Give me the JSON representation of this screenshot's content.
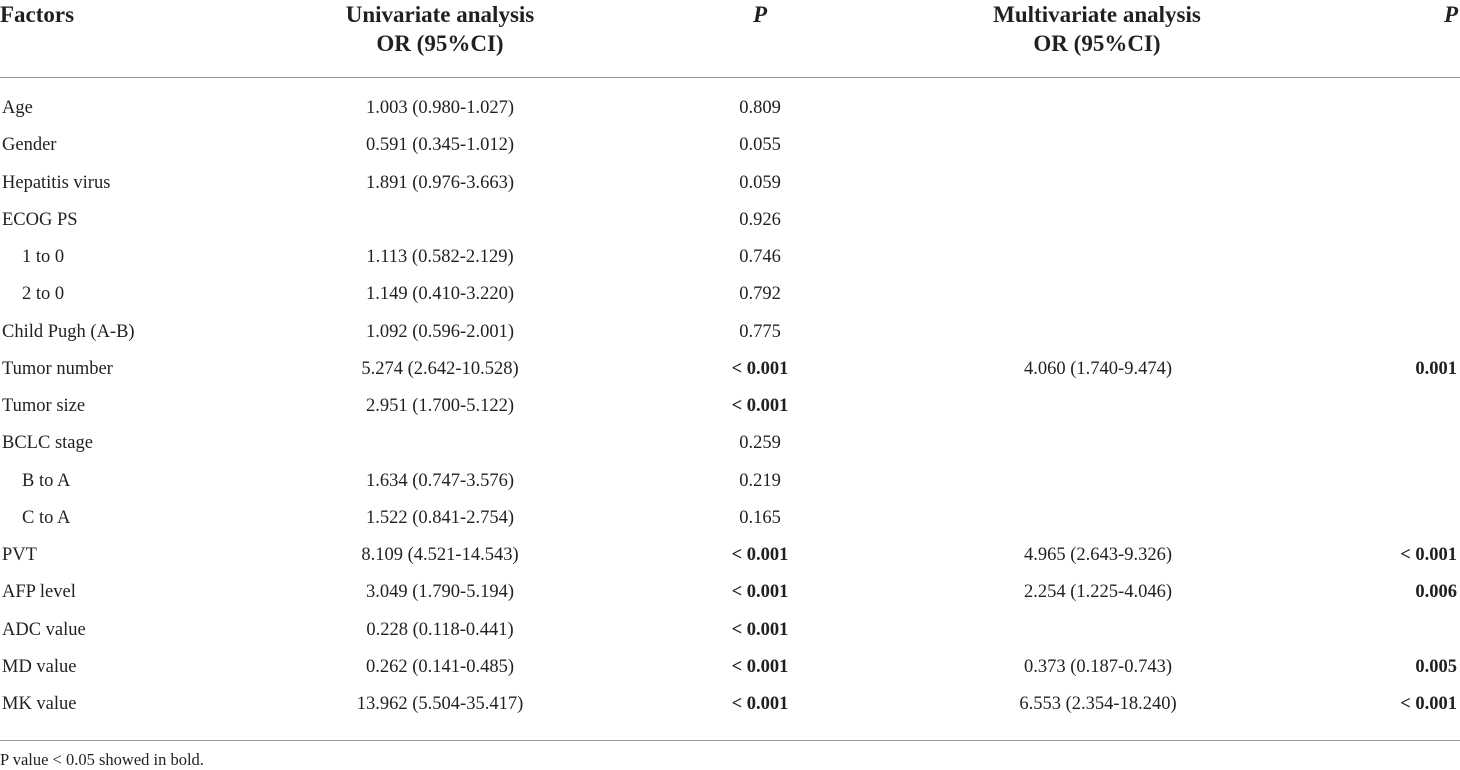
{
  "header": {
    "factors": "Factors",
    "univariate_line1": "Univariate analysis",
    "univariate_line2": "OR (95%CI)",
    "p1": "P",
    "multivariate_line1": "Multivariate analysis",
    "multivariate_line2": "OR (95%CI)",
    "p2": "P"
  },
  "rows": [
    {
      "factor": "Age",
      "indent": false,
      "uni": "1.003 (0.980-1.027)",
      "p1": "0.809",
      "p1_bold": false,
      "multi": "",
      "p2": "",
      "p2_bold": false
    },
    {
      "factor": "Gender",
      "indent": false,
      "uni": "0.591 (0.345-1.012)",
      "p1": "0.055",
      "p1_bold": false,
      "multi": "",
      "p2": "",
      "p2_bold": false
    },
    {
      "factor": "Hepatitis virus",
      "indent": false,
      "uni": "1.891 (0.976-3.663)",
      "p1": "0.059",
      "p1_bold": false,
      "multi": "",
      "p2": "",
      "p2_bold": false
    },
    {
      "factor": "ECOG PS",
      "indent": false,
      "uni": "",
      "p1": "0.926",
      "p1_bold": false,
      "multi": "",
      "p2": "",
      "p2_bold": false
    },
    {
      "factor": "1 to 0",
      "indent": true,
      "uni": "1.113 (0.582-2.129)",
      "p1": "0.746",
      "p1_bold": false,
      "multi": "",
      "p2": "",
      "p2_bold": false
    },
    {
      "factor": "2 to 0",
      "indent": true,
      "uni": "1.149 (0.410-3.220)",
      "p1": "0.792",
      "p1_bold": false,
      "multi": "",
      "p2": "",
      "p2_bold": false
    },
    {
      "factor": "Child Pugh (A-B)",
      "indent": false,
      "uni": "1.092 (0.596-2.001)",
      "p1": "0.775",
      "p1_bold": false,
      "multi": "",
      "p2": "",
      "p2_bold": false
    },
    {
      "factor": "Tumor number",
      "indent": false,
      "uni": "5.274 (2.642-10.528)",
      "p1": "< 0.001",
      "p1_bold": true,
      "multi": "4.060 (1.740-9.474)",
      "p2": "0.001",
      "p2_bold": true
    },
    {
      "factor": "Tumor size",
      "indent": false,
      "uni": "2.951 (1.700-5.122)",
      "p1": "< 0.001",
      "p1_bold": true,
      "multi": "",
      "p2": "",
      "p2_bold": false
    },
    {
      "factor": "BCLC stage",
      "indent": false,
      "uni": "",
      "p1": "0.259",
      "p1_bold": false,
      "multi": "",
      "p2": "",
      "p2_bold": false
    },
    {
      "factor": "B to A",
      "indent": true,
      "uni": "1.634 (0.747-3.576)",
      "p1": "0.219",
      "p1_bold": false,
      "multi": "",
      "p2": "",
      "p2_bold": false
    },
    {
      "factor": "C to A",
      "indent": true,
      "uni": "1.522 (0.841-2.754)",
      "p1": "0.165",
      "p1_bold": false,
      "multi": "",
      "p2": "",
      "p2_bold": false
    },
    {
      "factor": "PVT",
      "indent": false,
      "uni": "8.109 (4.521-14.543)",
      "p1": "< 0.001",
      "p1_bold": true,
      "multi": "4.965 (2.643-9.326)",
      "p2": "< 0.001",
      "p2_bold": true
    },
    {
      "factor": "AFP level",
      "indent": false,
      "uni": "3.049 (1.790-5.194)",
      "p1": "< 0.001",
      "p1_bold": true,
      "multi": "2.254 (1.225-4.046)",
      "p2": "0.006",
      "p2_bold": true
    },
    {
      "factor": "ADC value",
      "indent": false,
      "uni": "0.228 (0.118-0.441)",
      "p1": "< 0.001",
      "p1_bold": true,
      "multi": "",
      "p2": "",
      "p2_bold": false
    },
    {
      "factor": "MD value",
      "indent": false,
      "uni": "0.262 (0.141-0.485)",
      "p1": "< 0.001",
      "p1_bold": true,
      "multi": "0.373 (0.187-0.743)",
      "p2": "0.005",
      "p2_bold": true
    },
    {
      "factor": "MK value",
      "indent": false,
      "uni": "13.962 (5.504-35.417)",
      "p1": "< 0.001",
      "p1_bold": true,
      "multi": "6.553 (2.354-18.240)",
      "p2": "< 0.001",
      "p2_bold": true
    }
  ],
  "footnote": "P value < 0.05 showed in bold."
}
